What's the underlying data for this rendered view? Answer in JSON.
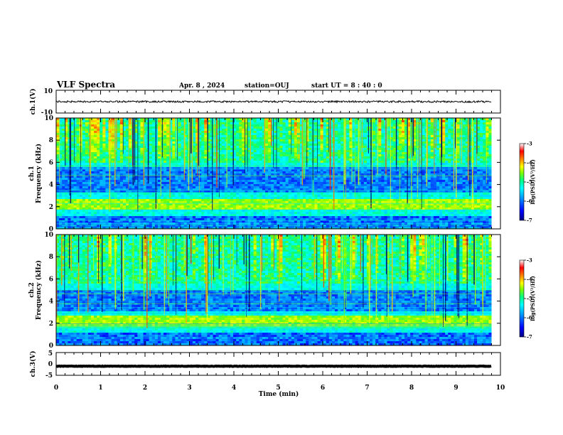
{
  "header": {
    "title": "VLF Spectra",
    "date": "Apr. 8 , 2024",
    "station": "station=OUJ",
    "start": "start UT = 8 : 40 : 0"
  },
  "chart_data": {
    "type": "heatmap",
    "xlabel": "Time (min)",
    "xlim": [
      0,
      10
    ],
    "xticks": [
      "0",
      "1",
      "2",
      "3",
      "4",
      "5",
      "6",
      "7",
      "8",
      "9",
      "10"
    ],
    "panels": [
      {
        "id": "ch1-waveform",
        "type": "line",
        "ylabel": "ch.1(V)",
        "ylim": [
          -10,
          10
        ],
        "yticks": [
          "10",
          "-10"
        ],
        "mean_value": 0,
        "data_end_min": 9.8
      },
      {
        "id": "ch1-spectrogram",
        "type": "heatmap",
        "ylabel_top": "ch.1",
        "ylabel": "Frequency (kHz)",
        "ylim": [
          0,
          10
        ],
        "yticks": [
          "0",
          "2",
          "4",
          "6",
          "8",
          "10"
        ],
        "data_end_min": 9.8,
        "enhanced_band_khz": [
          1.7,
          2.6
        ],
        "quiet_band_khz": [
          3.2,
          5.6
        ],
        "active_band_khz": [
          6.0,
          10
        ]
      },
      {
        "id": "ch2-spectrogram",
        "type": "heatmap",
        "ylabel_top": "ch.2",
        "ylabel": "Frequency (kHz)",
        "ylim": [
          0,
          10
        ],
        "yticks": [
          "0",
          "2",
          "4",
          "6",
          "8",
          "10"
        ],
        "data_end_min": 9.8,
        "enhanced_band_khz": [
          1.8,
          2.6
        ],
        "quiet_band_khz": [
          3.0,
          5.0
        ],
        "active_band_khz": [
          5.5,
          10
        ]
      },
      {
        "id": "ch3-waveform",
        "type": "line",
        "ylabel": "ch.3(V)",
        "ylim": [
          -5,
          5
        ],
        "yticks": [
          "5",
          "0",
          "-5"
        ],
        "mean_value": -1,
        "data_end_min": 9.8
      }
    ],
    "colorbar": {
      "label": "log(PSD)(V²/Hz)",
      "range": [
        -7,
        -3
      ],
      "ticks": [
        "-3",
        "-4",
        "-5",
        "-6",
        "-7"
      ],
      "colormap": [
        "#000080",
        "#0000ff",
        "#00a0ff",
        "#00ffff",
        "#00ff80",
        "#80ff00",
        "#ffff00",
        "#ff8000",
        "#ff0000",
        "#ffffff"
      ]
    }
  }
}
